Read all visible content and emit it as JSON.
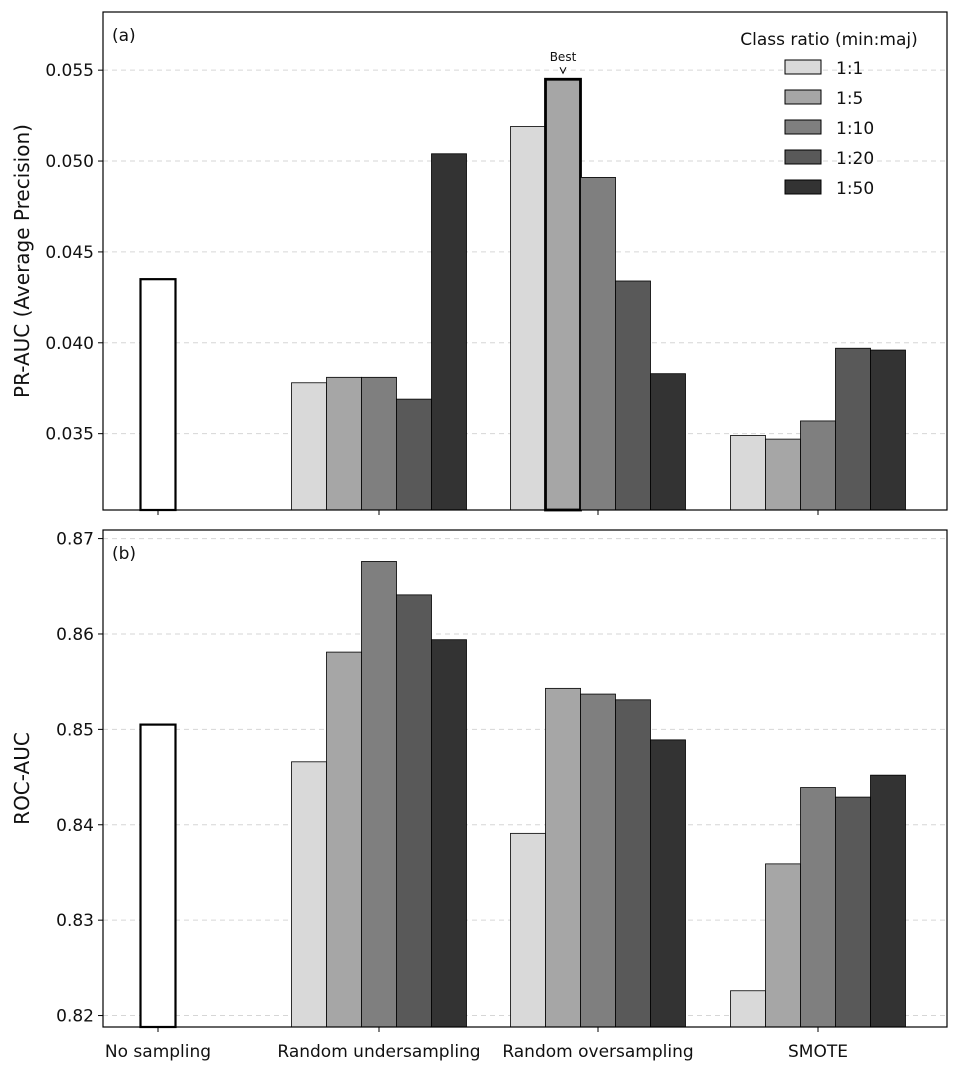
{
  "chart_data": [
    {
      "type": "bar",
      "panel_label": "(a)",
      "ylabel": "PR-AUC (Average Precision)",
      "xlabel": "",
      "ylim": [
        0.0308,
        0.0582
      ],
      "yticks": [
        0.035,
        0.04,
        0.045,
        0.05,
        0.055
      ],
      "ytick_labels": [
        "0.035",
        "0.040",
        "0.045",
        "0.050",
        "0.055"
      ],
      "grid": "horizontal dashed",
      "categories": [
        "No sampling",
        "Random undersampling",
        "Random oversampling",
        "SMOTE"
      ],
      "baseline": {
        "category": "No sampling",
        "value": 0.0435
      },
      "series": [
        {
          "name": "1:1",
          "values": [
            null,
            0.0378,
            0.0519,
            0.0349
          ]
        },
        {
          "name": "1:5",
          "values": [
            null,
            0.0381,
            0.0545,
            0.0347
          ]
        },
        {
          "name": "1:10",
          "values": [
            null,
            0.0381,
            0.0491,
            0.0357
          ]
        },
        {
          "name": "1:20",
          "values": [
            null,
            0.0369,
            0.0434,
            0.0397
          ]
        },
        {
          "name": "1:50",
          "values": [
            null,
            0.0504,
            0.0383,
            0.0396
          ]
        }
      ],
      "annotation": {
        "text": "Best",
        "category": "Random oversampling",
        "series": "1:5"
      },
      "legend": {
        "title": "Class ratio (min:maj)",
        "position": "top-right"
      }
    },
    {
      "type": "bar",
      "panel_label": "(b)",
      "ylabel": "ROC-AUC",
      "xlabel": "",
      "ylim": [
        0.8188,
        0.8709
      ],
      "yticks": [
        0.82,
        0.83,
        0.84,
        0.85,
        0.86,
        0.87
      ],
      "ytick_labels": [
        "0.82",
        "0.83",
        "0.84",
        "0.85",
        "0.86",
        "0.87"
      ],
      "grid": "horizontal dashed",
      "categories": [
        "No sampling",
        "Random undersampling",
        "Random oversampling",
        "SMOTE"
      ],
      "baseline": {
        "category": "No sampling",
        "value": 0.8505
      },
      "series": [
        {
          "name": "1:1",
          "values": [
            null,
            0.8466,
            0.8391,
            0.8226
          ]
        },
        {
          "name": "1:5",
          "values": [
            null,
            0.8581,
            0.8543,
            0.8359
          ]
        },
        {
          "name": "1:10",
          "values": [
            null,
            0.8676,
            0.8537,
            0.8439
          ]
        },
        {
          "name": "1:20",
          "values": [
            null,
            0.8641,
            0.8531,
            0.8429
          ]
        },
        {
          "name": "1:50",
          "values": [
            null,
            0.8594,
            0.8489,
            0.8452
          ]
        }
      ]
    }
  ],
  "series_colors": [
    "#d9d9d9",
    "#a6a6a6",
    "#7f7f7f",
    "#595959",
    "#333333"
  ],
  "baseline_color": "#ffffff"
}
